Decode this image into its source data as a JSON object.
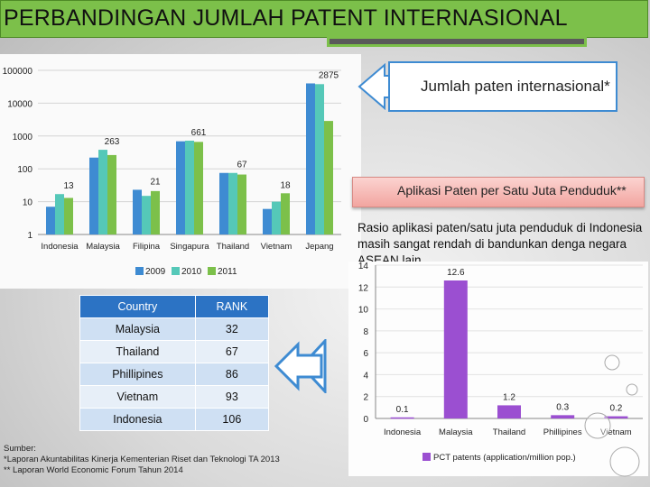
{
  "slide": {
    "title": "PERBANDINGAN JUMLAH PATENT INTERNASIONAL",
    "callout_label": "Jumlah paten internasional*",
    "pink_label": "Aplikasi Paten per Satu Juta Penduduk**",
    "description": "Rasio aplikasi paten/satu juta penduduk di Indonesia masih sangat rendah di bandunkan denga negara ASEAN lain.",
    "source_lines": [
      "Sumber:",
      "*Laporan Akuntabilitas Kinerja Kementerian Riset dan Teknologi TA 2013",
      "** Laporan World Economic Forum Tahun 2014"
    ],
    "colors": {
      "title_bg": "#7cc04a",
      "bar_2009": "#3e8bd2",
      "bar_2010": "#55c8b8",
      "bar_2011": "#7cc04a",
      "pct_bar": "#9b4fd1",
      "table_header": "#2c73c4",
      "arrow_blue": "#3e8bd2"
    }
  },
  "rank_table": {
    "headers": [
      "Country",
      "RANK"
    ],
    "rows": [
      {
        "country": "Malaysia",
        "rank": "32"
      },
      {
        "country": "Thailand",
        "rank": "67"
      },
      {
        "country": "Phillipines",
        "rank": "86"
      },
      {
        "country": "Vietnam",
        "rank": "93"
      },
      {
        "country": "Indonesia",
        "rank": "106"
      }
    ]
  },
  "chart_data": [
    {
      "type": "bar",
      "scale": "log",
      "ylim": [
        1,
        100000
      ],
      "y_ticks": [
        "1",
        "10",
        "100",
        "1000",
        "10000",
        "100000"
      ],
      "categories": [
        "Indonesia",
        "Malaysia",
        "Filipina",
        "Singapura",
        "Thailand",
        "Vietnam",
        "Jepang"
      ],
      "series": [
        {
          "name": "2009",
          "values": [
            7,
            220,
            23,
            690,
            75,
            6,
            40000
          ]
        },
        {
          "name": "2010",
          "values": [
            17,
            380,
            15,
            720,
            75,
            10,
            38000
          ]
        },
        {
          "name": "2011",
          "values": [
            13,
            263,
            21,
            661,
            67,
            18,
            2875
          ]
        }
      ],
      "data_labels": [
        {
          "category": "Indonesia",
          "text": "13"
        },
        {
          "category": "Malaysia",
          "text": "263"
        },
        {
          "category": "Filipina",
          "text": "21"
        },
        {
          "category": "Singapura",
          "text": "661"
        },
        {
          "category": "Thailand",
          "text": "67"
        },
        {
          "category": "Vietnam",
          "text": "18"
        },
        {
          "category": "Jepang",
          "text": "2875"
        }
      ],
      "grid": true,
      "legend": "bottom"
    },
    {
      "type": "bar",
      "ylim": [
        0,
        14
      ],
      "y_ticks": [
        "0",
        "2",
        "4",
        "6",
        "8",
        "10",
        "12",
        "14"
      ],
      "categories": [
        "Indonesia",
        "Malaysia",
        "Thailand",
        "Phillipines",
        "Vietnam"
      ],
      "series": [
        {
          "name": "PCT patents (application/million pop.)",
          "values": [
            0.1,
            12.6,
            1.2,
            0.3,
            0.2
          ]
        }
      ],
      "data_labels": [
        "0.1",
        "12.6",
        "1.2",
        "0.3",
        "0.2"
      ],
      "grid": true,
      "legend": "bottom"
    }
  ]
}
